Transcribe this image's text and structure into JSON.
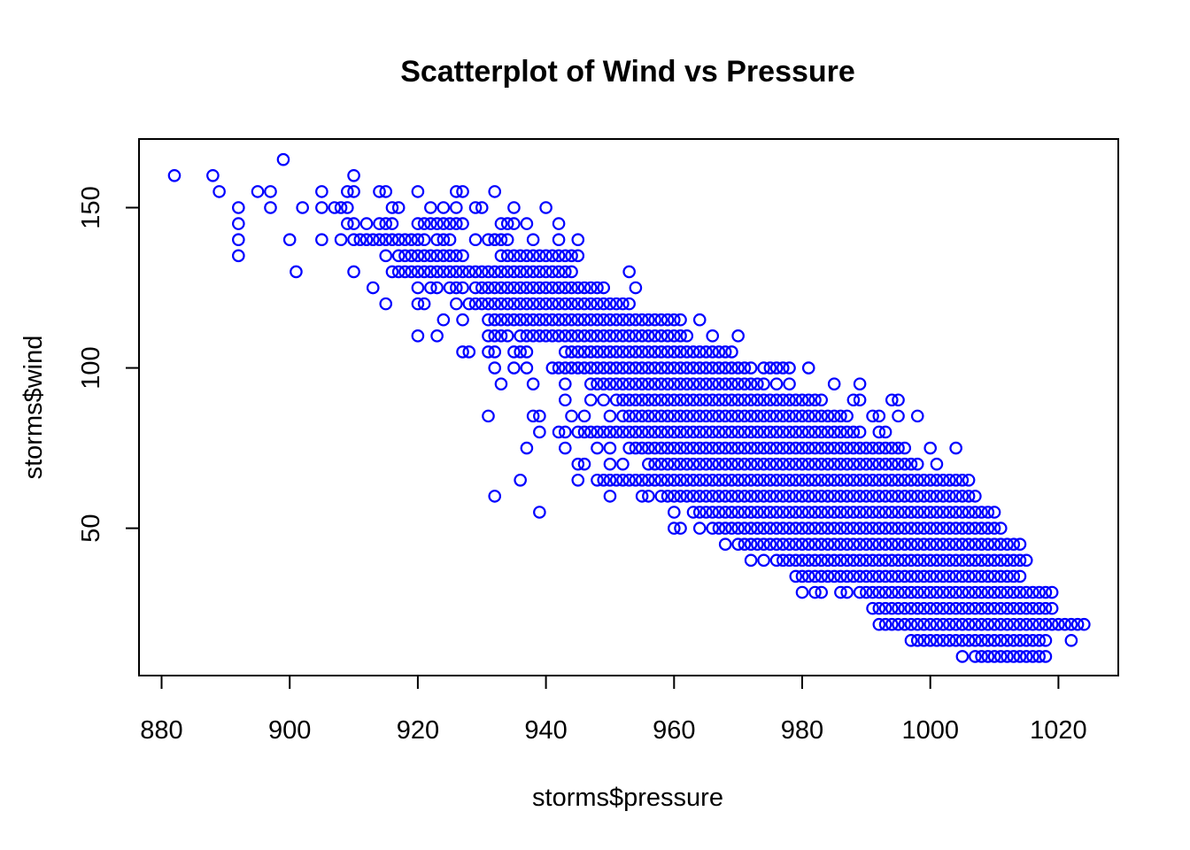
{
  "chart_data": {
    "type": "scatter",
    "title": "Scatterplot of Wind vs Pressure",
    "xlabel": "storms$pressure",
    "ylabel": "storms$wind",
    "xlim": [
      875,
      1028
    ],
    "ylim": [
      5,
      170
    ],
    "x_ticks": [
      880,
      900,
      920,
      940,
      960,
      980,
      1000,
      1020
    ],
    "y_ticks": [
      50,
      100,
      150
    ],
    "grid": false,
    "point_color": "#0000ff",
    "point_shape": "open-circle",
    "groups": [
      {
        "y": 165,
        "x": [
          899
        ]
      },
      {
        "y": 160,
        "x": [
          882,
          888,
          910
        ]
      },
      {
        "y": 155,
        "x": [
          889,
          895,
          897,
          905,
          909,
          910,
          914,
          915,
          920,
          926,
          927,
          932
        ]
      },
      {
        "y": 150,
        "x": [
          892,
          897,
          902,
          905,
          907,
          908,
          909,
          916,
          917,
          922,
          924,
          926,
          929,
          930,
          935,
          940
        ]
      },
      {
        "y": 145,
        "x": [
          892,
          909,
          910,
          912,
          914,
          915,
          916,
          [
            920,
            927
          ],
          933,
          934,
          935,
          937,
          942
        ]
      },
      {
        "y": 140,
        "x": [
          892,
          900,
          905,
          908,
          [
            910,
            918
          ],
          [
            919,
            921
          ],
          [
            923,
            925
          ],
          929,
          [
            931,
            934
          ],
          938,
          942,
          945
        ]
      },
      {
        "y": 135,
        "x": [
          892,
          915,
          917,
          [
            918,
            927
          ],
          [
            933,
            943
          ],
          944,
          945
        ]
      },
      {
        "y": 130,
        "x": [
          901,
          910,
          [
            916,
            944
          ],
          953
        ]
      },
      {
        "y": 125,
        "x": [
          913,
          920,
          922,
          923,
          925,
          926,
          927,
          [
            929,
            941
          ],
          [
            942,
            949
          ],
          954
        ]
      },
      {
        "y": 120,
        "x": [
          915,
          920,
          921,
          926,
          [
            928,
            953
          ]
        ]
      },
      {
        "y": 115,
        "x": [
          924,
          927,
          [
            931,
            961
          ],
          964
        ]
      },
      {
        "y": 110,
        "x": [
          920,
          923,
          [
            931,
            934
          ],
          [
            936,
            962
          ],
          966,
          970
        ]
      },
      {
        "y": 105,
        "x": [
          927,
          928,
          [
            931,
            932
          ],
          [
            935,
            937
          ],
          [
            943,
            969
          ]
        ]
      },
      {
        "y": 100,
        "x": [
          932,
          935,
          937,
          [
            941,
            972
          ],
          [
            974,
            978
          ],
          981
        ]
      },
      {
        "y": 95,
        "x": [
          933,
          938,
          943,
          [
            947,
            974
          ],
          976,
          978,
          985,
          989
        ]
      },
      {
        "y": 90,
        "x": [
          943,
          947,
          949,
          [
            951,
            983
          ],
          988,
          989,
          994,
          995
        ]
      },
      {
        "y": 85,
        "x": [
          931,
          938,
          939,
          944,
          946,
          950,
          [
            952,
            987
          ],
          991,
          992,
          995,
          998
        ]
      },
      {
        "y": 80,
        "x": [
          939,
          942,
          943,
          945,
          [
            946,
            989
          ],
          992,
          993
        ]
      },
      {
        "y": 75,
        "x": [
          937,
          943,
          948,
          950,
          [
            953,
            996
          ],
          1000,
          1004
        ]
      },
      {
        "y": 70,
        "x": [
          945,
          946,
          950,
          952,
          [
            956,
            998
          ],
          1001
        ]
      },
      {
        "y": 65,
        "x": [
          936,
          945,
          948,
          [
            949,
            1006
          ]
        ]
      },
      {
        "y": 60,
        "x": [
          932,
          950,
          [
            955,
            956
          ],
          [
            958,
            1007
          ]
        ]
      },
      {
        "y": 55,
        "x": [
          939,
          960,
          [
            963,
            1010
          ]
        ]
      },
      {
        "y": 50,
        "x": [
          960,
          961,
          964,
          [
            966,
            1011
          ]
        ]
      },
      {
        "y": 45,
        "x": [
          968,
          [
            970,
            1014
          ]
        ]
      },
      {
        "y": 40,
        "x": [
          972,
          974,
          [
            976,
            1015
          ]
        ]
      },
      {
        "y": 35,
        "x": [
          979,
          [
            980,
            1014
          ]
        ]
      },
      {
        "y": 30,
        "x": [
          980,
          982,
          983,
          986,
          987,
          [
            989,
            1019
          ]
        ]
      },
      {
        "y": 25,
        "x": [
          991,
          [
            992,
            1019
          ]
        ]
      },
      {
        "y": 20,
        "x": [
          992,
          [
            993,
            1024
          ]
        ]
      },
      {
        "y": 15,
        "x": [
          997,
          [
            998,
            1018
          ],
          1022
        ]
      },
      {
        "y": 10,
        "x": [
          1005,
          [
            1007,
            1018
          ]
        ]
      }
    ]
  }
}
